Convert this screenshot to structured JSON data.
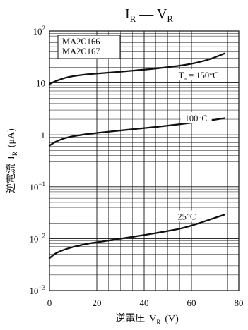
{
  "chart_data": {
    "type": "line",
    "title": {
      "main": "I",
      "sub1": "R",
      "dash": " — ",
      "main2": "V",
      "sub2": "R"
    },
    "part_numbers": [
      "MA2C166",
      "MA2C167"
    ],
    "x_axis": {
      "label_cjk": "逆電圧",
      "symbol": "V",
      "symbol_sub": "R",
      "unit": "(V)",
      "range": [
        0,
        80
      ],
      "ticks": [
        {
          "value": 0,
          "label": "0"
        },
        {
          "value": 20,
          "label": "20"
        },
        {
          "value": 40,
          "label": "40"
        },
        {
          "value": 60,
          "label": "60"
        },
        {
          "value": 80,
          "label": "80"
        }
      ]
    },
    "y_axis": {
      "label_cjk": "逆電流",
      "symbol": "I",
      "symbol_sub": "R",
      "unit": "(μA)",
      "scale": "log",
      "range": [
        0.001,
        100
      ],
      "ticks": [
        {
          "value": 100,
          "base": "10",
          "exp": "2"
        },
        {
          "value": 10,
          "base": "10",
          "exp": ""
        },
        {
          "value": 1,
          "base": "1",
          "exp": ""
        },
        {
          "value": 0.1,
          "base": "10",
          "exp": "−1"
        },
        {
          "value": 0.01,
          "base": "10",
          "exp": "−2"
        },
        {
          "value": 0.001,
          "base": "10",
          "exp": "−3"
        }
      ]
    },
    "grid": true,
    "series": [
      {
        "label": "T",
        "label_sub": "a",
        "label_rest": " = 150°C",
        "label_at": {
          "x": 63,
          "y": 13.5
        },
        "points": [
          [
            0,
            9.5
          ],
          [
            3,
            11
          ],
          [
            8,
            13
          ],
          [
            15,
            14.5
          ],
          [
            25,
            15.8
          ],
          [
            35,
            17.2
          ],
          [
            45,
            19
          ],
          [
            55,
            21.5
          ],
          [
            62,
            24.5
          ],
          [
            68,
            29
          ],
          [
            74,
            37
          ]
        ]
      },
      {
        "label": "100°C",
        "label_sub": "",
        "label_rest": "",
        "label_at": {
          "x": 62,
          "y": 2.0
        },
        "points": [
          [
            0,
            0.62
          ],
          [
            3,
            0.75
          ],
          [
            8,
            0.9
          ],
          [
            15,
            1.02
          ],
          [
            25,
            1.15
          ],
          [
            35,
            1.28
          ],
          [
            45,
            1.42
          ],
          [
            55,
            1.6
          ],
          [
            62,
            1.75
          ],
          [
            68,
            1.9
          ],
          [
            74,
            2.1
          ]
        ]
      },
      {
        "label": "25°C",
        "label_sub": "",
        "label_rest": "",
        "label_at": {
          "x": 58,
          "y": 0.0255
        },
        "points": [
          [
            0,
            0.0042
          ],
          [
            3,
            0.0053
          ],
          [
            8,
            0.0065
          ],
          [
            15,
            0.0078
          ],
          [
            25,
            0.0092
          ],
          [
            35,
            0.0108
          ],
          [
            45,
            0.0128
          ],
          [
            55,
            0.0155
          ],
          [
            62,
            0.019
          ],
          [
            68,
            0.0235
          ],
          [
            74,
            0.029
          ]
        ]
      }
    ]
  }
}
